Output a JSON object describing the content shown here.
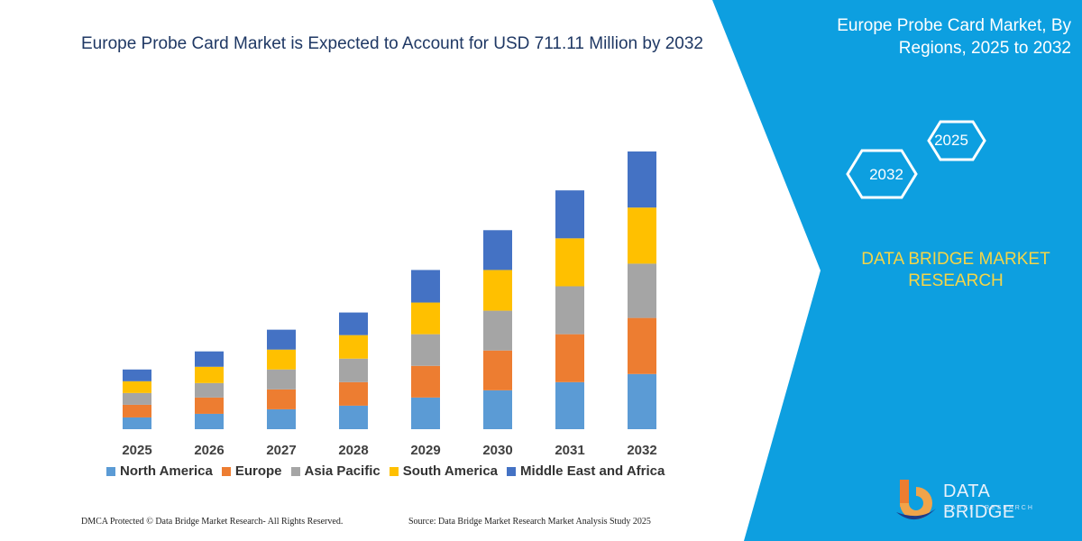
{
  "chart_data": {
    "type": "bar",
    "stacked": true,
    "title": "Europe Probe Card Market is Expected to Account for USD 711.11 Million by 2032",
    "categories": [
      "2025",
      "2026",
      "2027",
      "2028",
      "2029",
      "2030",
      "2031",
      "2032"
    ],
    "series": [
      {
        "name": "North America",
        "color": "#5b9bd5",
        "values": [
          13,
          17,
          22,
          26,
          35,
          43,
          52,
          61
        ]
      },
      {
        "name": "Europe",
        "color": "#ed7d31",
        "values": [
          14,
          18,
          22,
          26,
          35,
          44,
          53,
          62
        ]
      },
      {
        "name": "Asia Pacific",
        "color": "#a5a5a5",
        "values": [
          13,
          16,
          22,
          26,
          35,
          44,
          53,
          60
        ]
      },
      {
        "name": "South America",
        "color": "#ffc000",
        "values": [
          13,
          18,
          22,
          26,
          35,
          45,
          53,
          62
        ]
      },
      {
        "name": "Middle East and Africa",
        "color": "#4472c4",
        "values": [
          13,
          17,
          22,
          25,
          36,
          44,
          53,
          62
        ]
      }
    ],
    "legend_position": "bottom",
    "grid": false
  },
  "footer": {
    "left": "DMCA Protected © Data Bridge Market Research-  All Rights Reserved.",
    "right": "Source: Data Bridge Market Research  Market Analysis Study 2025"
  },
  "panel": {
    "title": "Europe Probe Card Market, By Regions, 2025 to 2032",
    "hex_back": "2025",
    "hex_front": "2032",
    "brand_text": "DATA BRIDGE MARKET RESEARCH",
    "accent_color": "#0d9fe0",
    "brand_color": "#f5d547"
  },
  "logo": {
    "name": "DATA BRIDGE",
    "sub": "MARKET RESEARCH"
  }
}
